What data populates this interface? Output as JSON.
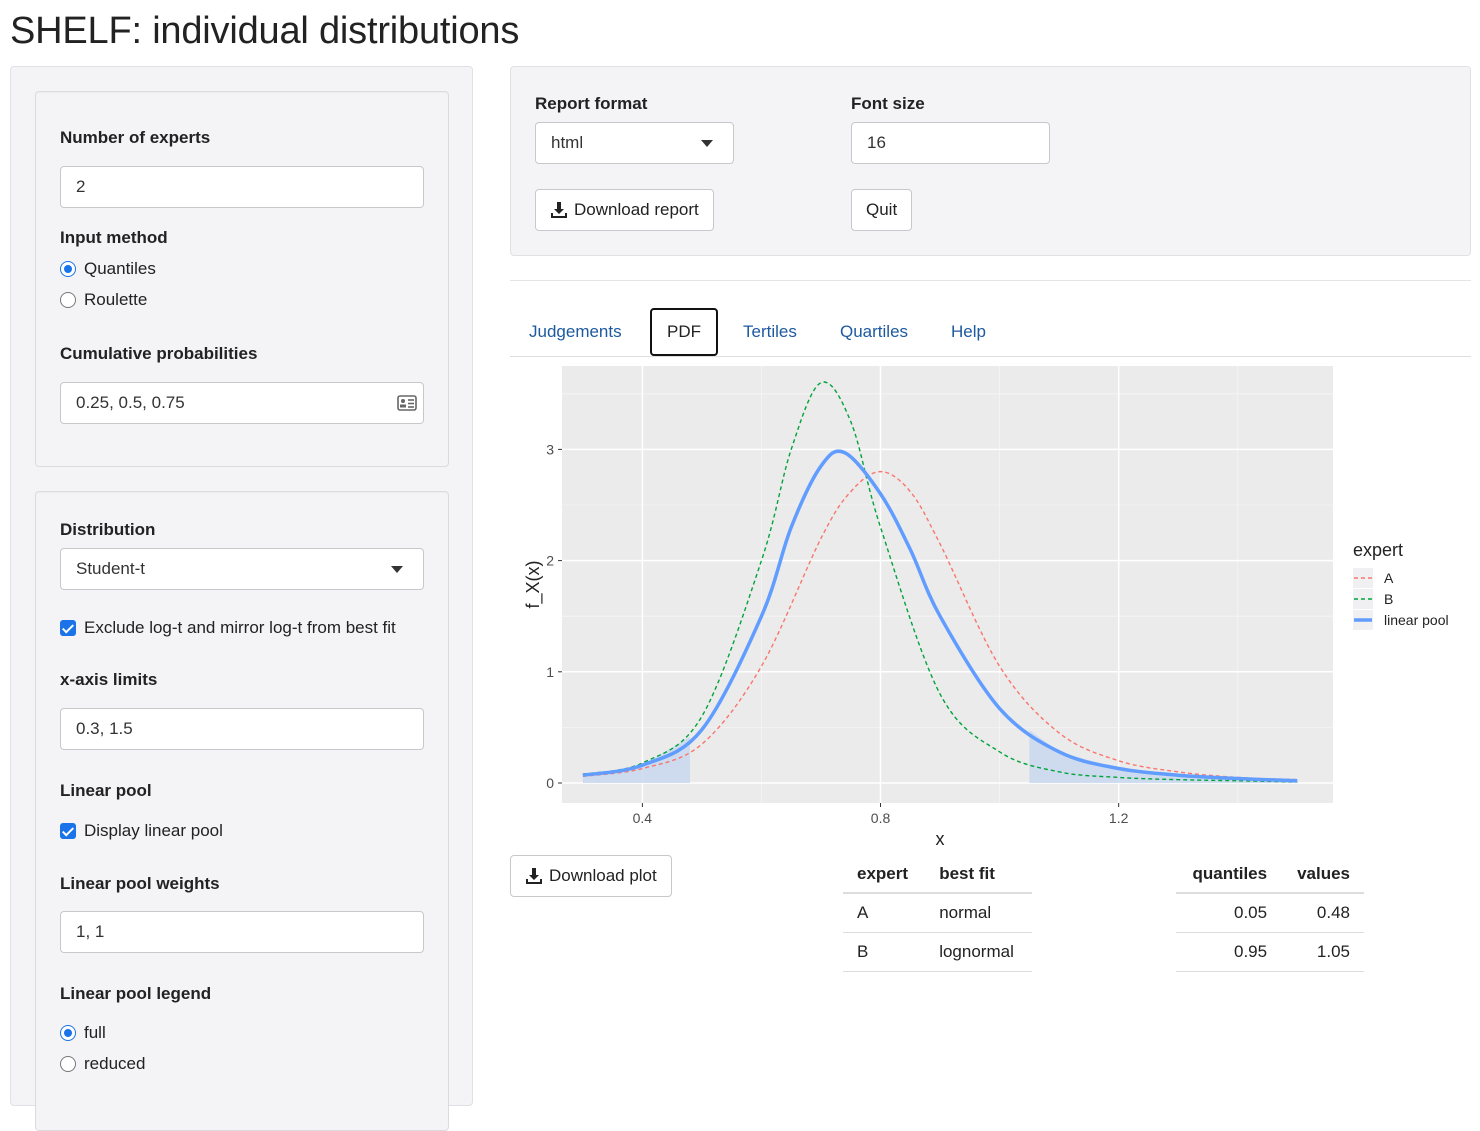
{
  "app": {
    "title": "SHELF: individual distributions"
  },
  "sidebar": {
    "num_experts": {
      "label": "Number of experts",
      "value": "2"
    },
    "input_method": {
      "label": "Input method",
      "options": [
        "Quantiles",
        "Roulette"
      ],
      "selected": "Quantiles"
    },
    "cum_probs": {
      "label": "Cumulative probabilities",
      "value": "0.25, 0.5, 0.75",
      "icon": "contact-card-icon"
    },
    "distribution": {
      "label": "Distribution",
      "value": "Student-t"
    },
    "exclude_logt": {
      "label": "Exclude log-t and mirror log-t from best fit",
      "checked": true
    },
    "xlimits": {
      "label": "x-axis limits",
      "value": "0.3, 1.5"
    },
    "linear_pool": {
      "label": "Linear pool",
      "display_label": "Display linear pool",
      "checked": true
    },
    "pool_weights": {
      "label": "Linear pool weights",
      "value": "1, 1"
    },
    "pool_legend": {
      "label": "Linear pool legend",
      "options": [
        "full",
        "reduced"
      ],
      "selected": "full"
    }
  },
  "report": {
    "format_label": "Report format",
    "format_value": "html",
    "font_label": "Font size",
    "font_value": "16",
    "download_label": "Download report",
    "quit_label": "Quit"
  },
  "tabs": [
    {
      "label": "Judgements",
      "active": false
    },
    {
      "label": "PDF",
      "active": true
    },
    {
      "label": "Tertiles",
      "active": false
    },
    {
      "label": "Quartiles",
      "active": false
    },
    {
      "label": "Help",
      "active": false
    }
  ],
  "download_plot_label": "Download plot",
  "fit_table": {
    "headers": [
      "expert",
      "best fit"
    ],
    "rows": [
      [
        "A",
        "normal"
      ],
      [
        "B",
        "lognormal"
      ]
    ]
  },
  "quantile_table": {
    "headers": [
      "quantiles",
      "values"
    ],
    "rows": [
      [
        "0.05",
        "0.48"
      ],
      [
        "0.95",
        "1.05"
      ]
    ]
  },
  "chart_data": {
    "type": "line",
    "xlabel": "x",
    "ylabel": "f_X(x)",
    "xlim": [
      0.3,
      1.5
    ],
    "ylim": [
      0,
      3.7
    ],
    "x_ticks": [
      0.4,
      0.8,
      1.2
    ],
    "y_ticks": [
      0,
      1,
      2,
      3
    ],
    "legend_title": "expert",
    "legend_position": "right",
    "background": "#ebebeb",
    "series": [
      {
        "name": "A",
        "style": "dashed",
        "color": "#f8766d",
        "x": [
          0.3,
          0.4,
          0.5,
          0.6,
          0.7,
          0.75,
          0.8,
          0.85,
          0.9,
          1.0,
          1.1,
          1.2,
          1.3,
          1.4,
          1.5
        ],
        "y": [
          0.06,
          0.13,
          0.35,
          1.05,
          2.2,
          2.62,
          2.8,
          2.62,
          2.15,
          1.05,
          0.45,
          0.2,
          0.1,
          0.05,
          0.03
        ]
      },
      {
        "name": "B",
        "style": "dashed",
        "color": "#00a33a",
        "x": [
          0.3,
          0.4,
          0.5,
          0.6,
          0.65,
          0.7,
          0.75,
          0.8,
          0.9,
          1.0,
          1.1,
          1.2,
          1.3,
          1.4,
          1.5
        ],
        "y": [
          0.08,
          0.18,
          0.6,
          2.0,
          3.0,
          3.6,
          3.25,
          2.3,
          0.8,
          0.28,
          0.1,
          0.05,
          0.03,
          0.02,
          0.01
        ]
      },
      {
        "name": "linear pool",
        "style": "solid",
        "color": "#619cff",
        "x": [
          0.3,
          0.4,
          0.5,
          0.6,
          0.65,
          0.7,
          0.74,
          0.8,
          0.85,
          0.9,
          1.0,
          1.1,
          1.2,
          1.3,
          1.4,
          1.5
        ],
        "y": [
          0.07,
          0.16,
          0.48,
          1.5,
          2.3,
          2.85,
          2.97,
          2.6,
          2.1,
          1.5,
          0.67,
          0.28,
          0.13,
          0.07,
          0.04,
          0.02
        ]
      }
    ],
    "shaded_tails": [
      [
        0.3,
        0.48
      ],
      [
        1.05,
        1.5
      ]
    ]
  }
}
